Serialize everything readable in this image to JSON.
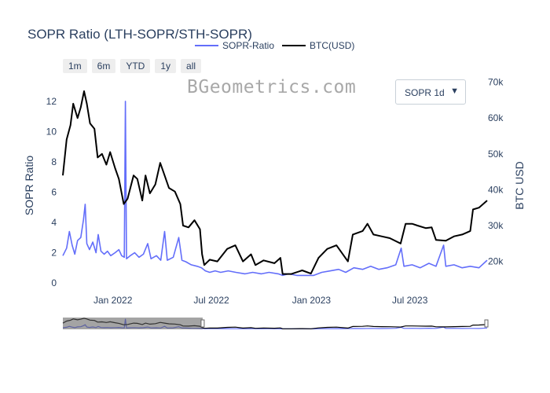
{
  "title": "SOPR Ratio (LTH-SOPR/STH-SOPR)",
  "watermark": "BGeometrics.com",
  "range_buttons": [
    "1m",
    "6m",
    "YTD",
    "1y",
    "all"
  ],
  "dropdown": {
    "selected": "SOPR 1d",
    "arrow": "▼"
  },
  "chart_data": {
    "type": "line",
    "title": "SOPR Ratio (LTH-SOPR/STH-SOPR)",
    "x_range": [
      "2021-10-01",
      "2023-11-20"
    ],
    "x_ticks": [
      {
        "date": "2022-01-01",
        "label": "Jan 2022"
      },
      {
        "date": "2022-07-01",
        "label": "Jul 2022"
      },
      {
        "date": "2023-01-01",
        "label": "Jan 2023"
      },
      {
        "date": "2023-07-01",
        "label": "Jul 2023"
      }
    ],
    "y_left": {
      "label": "SOPR Ratio",
      "range": [
        0,
        13.5
      ],
      "ticks": [
        0,
        2,
        4,
        6,
        8,
        10,
        12
      ]
    },
    "y_right": {
      "label": "BTC USD",
      "range": [
        14000,
        71000
      ],
      "ticks": [
        20000,
        30000,
        40000,
        50000,
        60000,
        70000
      ],
      "tick_labels": [
        "20k",
        "30k",
        "40k",
        "50k",
        "60k",
        "70k"
      ]
    },
    "legend_position": "top-center",
    "grid": false,
    "series": [
      {
        "name": "SOPR-Ratio",
        "axis": "left",
        "color": "#636efa",
        "points": [
          [
            "2021-10-01",
            1.8
          ],
          [
            "2021-10-08",
            2.3
          ],
          [
            "2021-10-13",
            3.4
          ],
          [
            "2021-10-18",
            2.5
          ],
          [
            "2021-10-23",
            1.9
          ],
          [
            "2021-10-28",
            2.8
          ],
          [
            "2021-11-03",
            3.0
          ],
          [
            "2021-11-08",
            4.2
          ],
          [
            "2021-11-11",
            5.2
          ],
          [
            "2021-11-14",
            2.6
          ],
          [
            "2021-11-19",
            2.2
          ],
          [
            "2021-11-25",
            2.7
          ],
          [
            "2021-12-01",
            2.0
          ],
          [
            "2021-12-05",
            3.2
          ],
          [
            "2021-12-10",
            2.1
          ],
          [
            "2021-12-16",
            1.9
          ],
          [
            "2021-12-22",
            2.1
          ],
          [
            "2021-12-28",
            1.8
          ],
          [
            "2022-01-05",
            2.0
          ],
          [
            "2022-01-12",
            2.2
          ],
          [
            "2022-01-17",
            1.8
          ],
          [
            "2022-01-22",
            1.7
          ],
          [
            "2022-01-24",
            12.0
          ],
          [
            "2022-01-26",
            1.6
          ],
          [
            "2022-02-02",
            1.8
          ],
          [
            "2022-02-10",
            2.0
          ],
          [
            "2022-02-18",
            1.7
          ],
          [
            "2022-02-26",
            1.9
          ],
          [
            "2022-03-06",
            2.6
          ],
          [
            "2022-03-12",
            1.6
          ],
          [
            "2022-03-22",
            1.8
          ],
          [
            "2022-03-30",
            1.5
          ],
          [
            "2022-04-06",
            3.4
          ],
          [
            "2022-04-11",
            1.5
          ],
          [
            "2022-04-22",
            1.7
          ],
          [
            "2022-05-02",
            3.0
          ],
          [
            "2022-05-08",
            1.5
          ],
          [
            "2022-05-15",
            1.4
          ],
          [
            "2022-05-25",
            1.2
          ],
          [
            "2022-06-05",
            1.1
          ],
          [
            "2022-06-13",
            1.0
          ],
          [
            "2022-06-20",
            0.8
          ],
          [
            "2022-06-28",
            0.7
          ],
          [
            "2022-07-08",
            0.8
          ],
          [
            "2022-07-18",
            0.7
          ],
          [
            "2022-08-01",
            0.8
          ],
          [
            "2022-08-15",
            0.7
          ],
          [
            "2022-09-01",
            0.6
          ],
          [
            "2022-09-15",
            0.7
          ],
          [
            "2022-10-01",
            0.6
          ],
          [
            "2022-10-15",
            0.7
          ],
          [
            "2022-11-01",
            0.6
          ],
          [
            "2022-11-09",
            0.5
          ],
          [
            "2022-11-20",
            0.6
          ],
          [
            "2022-12-05",
            0.5
          ],
          [
            "2022-12-20",
            0.5
          ],
          [
            "2023-01-05",
            0.5
          ],
          [
            "2023-01-20",
            0.7
          ],
          [
            "2023-02-05",
            0.8
          ],
          [
            "2023-02-20",
            0.9
          ],
          [
            "2023-03-05",
            0.7
          ],
          [
            "2023-03-20",
            1.0
          ],
          [
            "2023-04-05",
            0.9
          ],
          [
            "2023-04-20",
            1.1
          ],
          [
            "2023-05-05",
            0.9
          ],
          [
            "2023-05-20",
            1.0
          ],
          [
            "2023-06-05",
            1.2
          ],
          [
            "2023-06-15",
            2.3
          ],
          [
            "2023-06-20",
            1.1
          ],
          [
            "2023-07-05",
            1.2
          ],
          [
            "2023-07-20",
            1.0
          ],
          [
            "2023-08-05",
            1.3
          ],
          [
            "2023-08-18",
            1.1
          ],
          [
            "2023-09-01",
            2.5
          ],
          [
            "2023-09-05",
            1.1
          ],
          [
            "2023-09-20",
            1.2
          ],
          [
            "2023-10-05",
            1.0
          ],
          [
            "2023-10-20",
            1.1
          ],
          [
            "2023-11-05",
            1.0
          ],
          [
            "2023-11-20",
            1.5
          ]
        ]
      },
      {
        "name": "BTC(USD)",
        "axis": "right",
        "color": "#000000",
        "points": [
          [
            "2021-10-01",
            44000
          ],
          [
            "2021-10-08",
            54000
          ],
          [
            "2021-10-15",
            58000
          ],
          [
            "2021-10-20",
            64000
          ],
          [
            "2021-10-28",
            60000
          ],
          [
            "2021-11-03",
            63000
          ],
          [
            "2021-11-09",
            67500
          ],
          [
            "2021-11-14",
            64000
          ],
          [
            "2021-11-20",
            58500
          ],
          [
            "2021-11-28",
            57000
          ],
          [
            "2021-12-04",
            49000
          ],
          [
            "2021-12-12",
            50000
          ],
          [
            "2021-12-20",
            47000
          ],
          [
            "2021-12-27",
            50500
          ],
          [
            "2022-01-05",
            46000
          ],
          [
            "2022-01-12",
            43000
          ],
          [
            "2022-01-21",
            36000
          ],
          [
            "2022-01-28",
            37500
          ],
          [
            "2022-02-08",
            44000
          ],
          [
            "2022-02-15",
            43000
          ],
          [
            "2022-02-24",
            37000
          ],
          [
            "2022-03-02",
            44000
          ],
          [
            "2022-03-10",
            39000
          ],
          [
            "2022-03-20",
            41500
          ],
          [
            "2022-03-29",
            47500
          ],
          [
            "2022-04-06",
            44000
          ],
          [
            "2022-04-14",
            40500
          ],
          [
            "2022-04-25",
            39500
          ],
          [
            "2022-05-05",
            36000
          ],
          [
            "2022-05-10",
            30000
          ],
          [
            "2022-05-20",
            29500
          ],
          [
            "2022-05-31",
            31500
          ],
          [
            "2022-06-10",
            29000
          ],
          [
            "2022-06-14",
            22000
          ],
          [
            "2022-06-18",
            19000
          ],
          [
            "2022-06-28",
            20500
          ],
          [
            "2022-07-12",
            20000
          ],
          [
            "2022-07-30",
            23500
          ],
          [
            "2022-08-14",
            24500
          ],
          [
            "2022-08-28",
            20000
          ],
          [
            "2022-09-12",
            22000
          ],
          [
            "2022-09-20",
            19000
          ],
          [
            "2022-10-05",
            20300
          ],
          [
            "2022-10-25",
            19500
          ],
          [
            "2022-11-05",
            21000
          ],
          [
            "2022-11-09",
            16500
          ],
          [
            "2022-11-25",
            16500
          ],
          [
            "2022-12-15",
            17500
          ],
          [
            "2022-12-31",
            16600
          ],
          [
            "2023-01-14",
            21000
          ],
          [
            "2023-01-30",
            23500
          ],
          [
            "2023-02-16",
            24500
          ],
          [
            "2023-03-09",
            20000
          ],
          [
            "2023-03-18",
            27500
          ],
          [
            "2023-04-05",
            28500
          ],
          [
            "2023-04-14",
            30500
          ],
          [
            "2023-04-25",
            27500
          ],
          [
            "2023-05-10",
            27000
          ],
          [
            "2023-05-25",
            26500
          ],
          [
            "2023-06-14",
            25000
          ],
          [
            "2023-06-23",
            30500
          ],
          [
            "2023-07-05",
            30500
          ],
          [
            "2023-07-15",
            30000
          ],
          [
            "2023-07-30",
            29300
          ],
          [
            "2023-08-10",
            29500
          ],
          [
            "2023-08-18",
            26000
          ],
          [
            "2023-09-05",
            25800
          ],
          [
            "2023-09-20",
            27000
          ],
          [
            "2023-10-05",
            27500
          ],
          [
            "2023-10-20",
            28500
          ],
          [
            "2023-10-25",
            34500
          ],
          [
            "2023-11-05",
            35000
          ],
          [
            "2023-11-20",
            37000
          ]
        ]
      }
    ],
    "range_slider": {
      "selected_start": "2021-10-01",
      "selected_end": "2022-06-15"
    }
  }
}
